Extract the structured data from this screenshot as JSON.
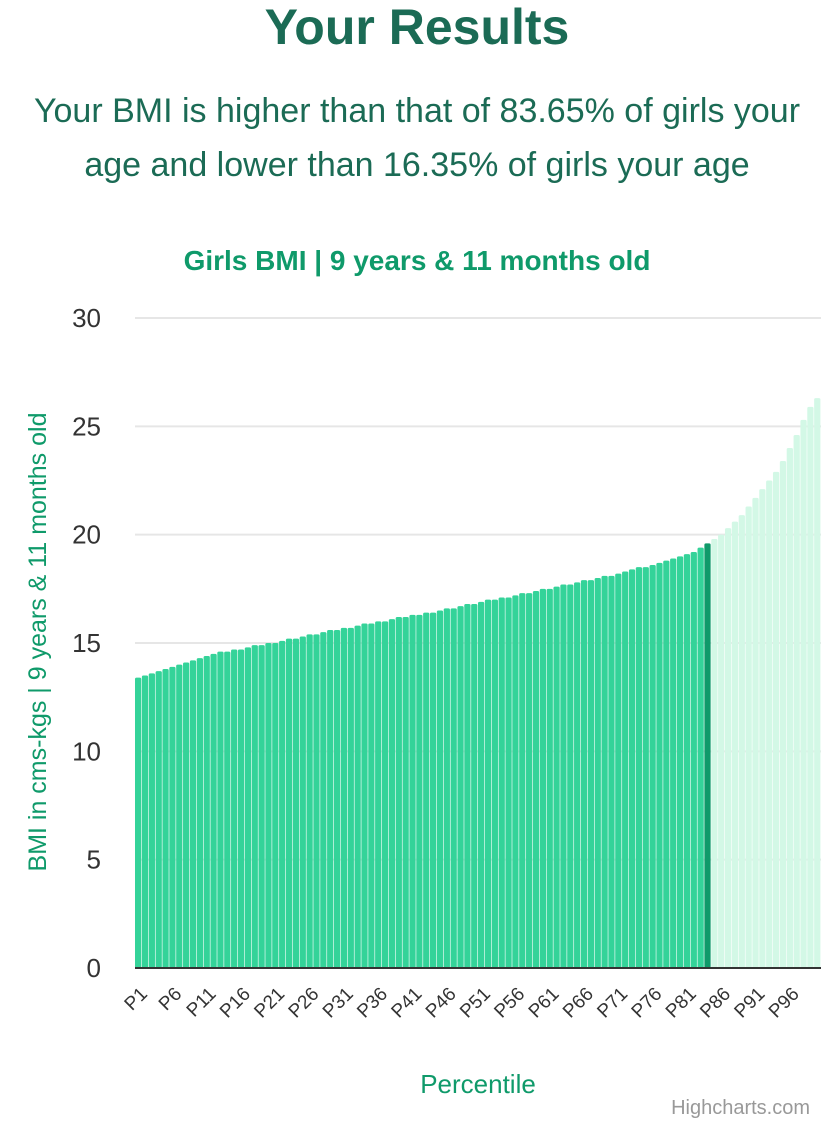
{
  "header": {
    "title": "Your Results",
    "summary": "Your BMI is higher than that of 83.65% of girls your age and lower than 16.35% of girls your age"
  },
  "colors": {
    "heading": "#1b6b55",
    "accent": "#0f9a6a",
    "bar_below": "#34d399",
    "bar_current": "#0f9a6a",
    "bar_above": "#d3f8e6"
  },
  "credits": "Highcharts.com",
  "chart_data": {
    "type": "bar",
    "title": "Girls BMI | 9 years & 11 months old",
    "xlabel": "Percentile",
    "ylabel": "BMI in cms-kgs | 9 years & 11 months old",
    "ylim": [
      0,
      30
    ],
    "yticks": [
      0,
      5,
      10,
      15,
      20,
      25,
      30
    ],
    "xtick_labels": [
      "P1",
      "P6",
      "P11",
      "P16",
      "P21",
      "P26",
      "P31",
      "P36",
      "P41",
      "P46",
      "P51",
      "P56",
      "P61",
      "P66",
      "P71",
      "P76",
      "P81",
      "P86",
      "P91",
      "P96"
    ],
    "grid": true,
    "highlight_percentile": 84,
    "percentile_start": 1,
    "percentile_count": 100,
    "values": [
      13.4,
      13.5,
      13.6,
      13.7,
      13.8,
      13.9,
      14.0,
      14.1,
      14.2,
      14.3,
      14.4,
      14.5,
      14.6,
      14.6,
      14.7,
      14.7,
      14.8,
      14.9,
      14.9,
      15.0,
      15.0,
      15.1,
      15.2,
      15.2,
      15.3,
      15.4,
      15.4,
      15.5,
      15.6,
      15.6,
      15.7,
      15.7,
      15.8,
      15.9,
      15.9,
      16.0,
      16.0,
      16.1,
      16.2,
      16.2,
      16.3,
      16.3,
      16.4,
      16.4,
      16.5,
      16.6,
      16.6,
      16.7,
      16.8,
      16.8,
      16.9,
      17.0,
      17.0,
      17.1,
      17.1,
      17.2,
      17.3,
      17.3,
      17.4,
      17.5,
      17.5,
      17.6,
      17.7,
      17.7,
      17.8,
      17.9,
      17.9,
      18.0,
      18.1,
      18.1,
      18.2,
      18.3,
      18.4,
      18.5,
      18.5,
      18.6,
      18.7,
      18.8,
      18.9,
      19.0,
      19.1,
      19.2,
      19.4,
      19.6,
      19.8,
      20.0,
      20.3,
      20.6,
      20.9,
      21.3,
      21.7,
      22.1,
      22.5,
      22.9,
      23.4,
      24.0,
      24.6,
      25.3,
      25.9,
      26.3
    ]
  }
}
